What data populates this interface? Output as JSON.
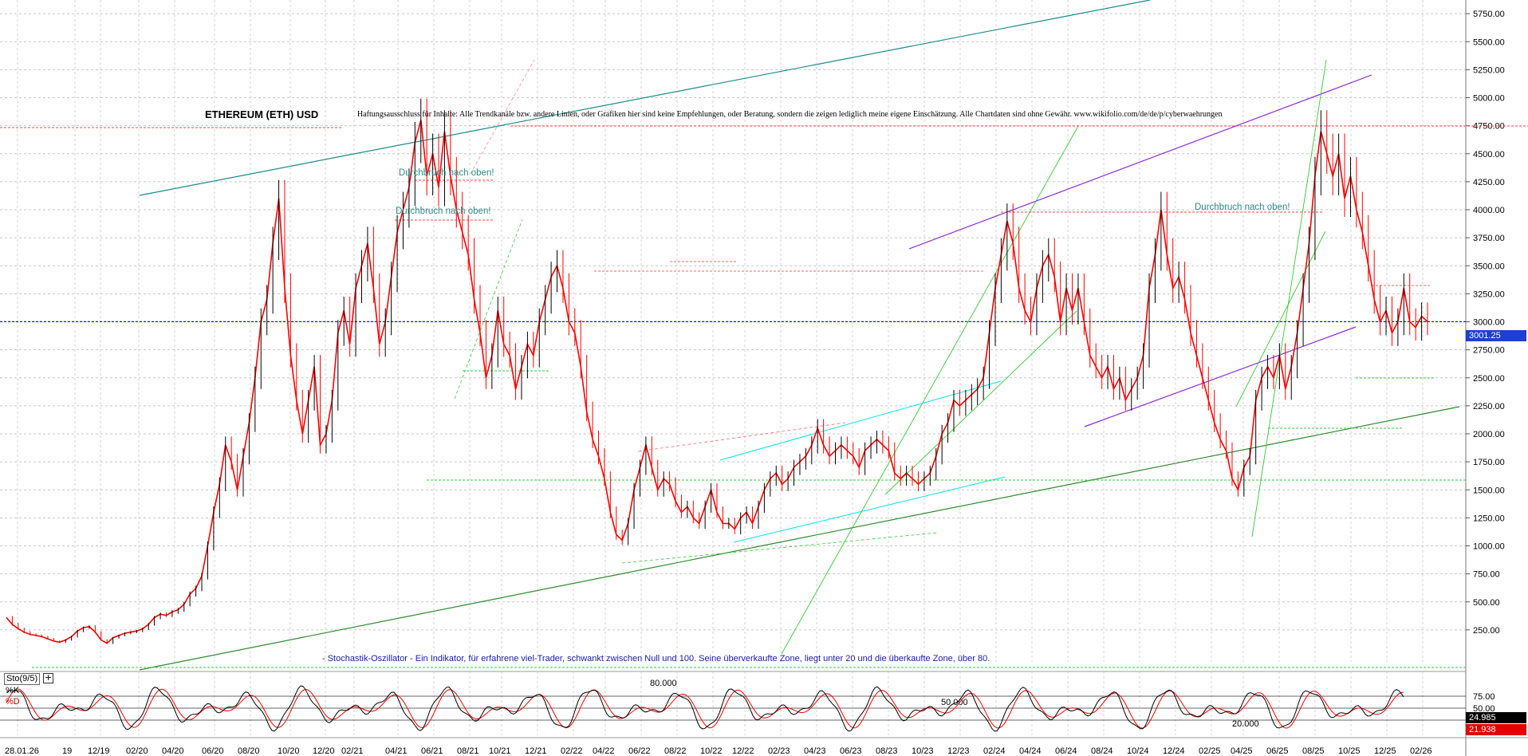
{
  "chart_data": {
    "type": "line",
    "title": "ETHEREUM (ETH) USD",
    "disclaimer": "Haftungsausschluss für Inhalte: Alle Trendkanäle bzw. andere Linien, oder Grafiken hier sind keine Empfehlungen, oder Beratung, sondern die zeigen lediglich meine eigene Einschätzung. Alle Chartdaten sind ohne Gewähr. www.wikifolio.com/de/de/p/cyberwaehrungen",
    "x_tick_labels": [
      "28.01.26",
      "19",
      "12/19",
      "02/20",
      "04/20",
      "06/20",
      "08/20",
      "10/20",
      "12/20",
      "02/21",
      "04/21",
      "06/21",
      "08/21",
      "10/21",
      "12/21",
      "02/22",
      "04/22",
      "06/22",
      "08/22",
      "10/22",
      "12/22",
      "02/23",
      "04/23",
      "06/23",
      "08/23",
      "10/23",
      "12/23",
      "02/24",
      "04/24",
      "06/24",
      "08/24",
      "10/24",
      "12/24",
      "02/25",
      "04/25",
      "06/25",
      "08/25",
      "10/25",
      "12/25",
      "02/26"
    ],
    "y_tick_labels": [
      "5750.00",
      "5500.00",
      "5250.00",
      "5000.00",
      "4750.00",
      "4500.00",
      "4250.00",
      "4000.00",
      "3750.00",
      "3500.00",
      "3250.00",
      "3000.00",
      "2750.00",
      "2500.00",
      "2250.00",
      "2000.00",
      "1750.00",
      "1500.00",
      "1250.00",
      "1000.00",
      "750.00",
      "500.00",
      "250.00"
    ],
    "ylim": [
      0,
      5900
    ],
    "grid": true,
    "current_price_label": "3001.25",
    "series": [
      {
        "values": [
          [
            0,
            360
          ],
          [
            0.5,
            300
          ],
          [
            1,
            260
          ],
          [
            1.5,
            230
          ],
          [
            2,
            210
          ],
          [
            2.5,
            200
          ],
          [
            3,
            190
          ],
          [
            3.5,
            170
          ],
          [
            4,
            150
          ],
          [
            4.5,
            140
          ],
          [
            5,
            160
          ],
          [
            5.5,
            190
          ],
          [
            6,
            240
          ],
          [
            6.5,
            270
          ],
          [
            7,
            280
          ],
          [
            7.5,
            230
          ],
          [
            8,
            160
          ],
          [
            8.5,
            130
          ],
          [
            9,
            180
          ],
          [
            9.5,
            200
          ],
          [
            10,
            220
          ],
          [
            10.5,
            230
          ],
          [
            11,
            240
          ],
          [
            11.5,
            260
          ],
          [
            12,
            300
          ],
          [
            12.5,
            360
          ],
          [
            13,
            390
          ],
          [
            13.5,
            380
          ],
          [
            14,
            410
          ],
          [
            14.5,
            430
          ],
          [
            15,
            480
          ],
          [
            15.5,
            570
          ],
          [
            16,
            620
          ],
          [
            16.5,
            730
          ],
          [
            17,
            1000
          ],
          [
            17.5,
            1300
          ],
          [
            18,
            1550
          ],
          [
            18.5,
            1900
          ],
          [
            19,
            1750
          ],
          [
            19.5,
            1500
          ],
          [
            20,
            1800
          ],
          [
            20.5,
            2100
          ],
          [
            21,
            2500
          ],
          [
            21.5,
            3000
          ],
          [
            22,
            3200
          ],
          [
            22.5,
            3700
          ],
          [
            23,
            4100
          ],
          [
            23.5,
            3300
          ],
          [
            24,
            2700
          ],
          [
            24.5,
            2300
          ],
          [
            25,
            2000
          ],
          [
            25.5,
            2300
          ],
          [
            26,
            2600
          ],
          [
            26.5,
            1900
          ],
          [
            27,
            2000
          ],
          [
            27.5,
            2300
          ],
          [
            28,
            2900
          ],
          [
            28.5,
            3100
          ],
          [
            29,
            2800
          ],
          [
            29.5,
            3300
          ],
          [
            30,
            3500
          ],
          [
            30.5,
            3700
          ],
          [
            31,
            3300
          ],
          [
            31.5,
            2800
          ],
          [
            32,
            3000
          ],
          [
            32.5,
            3400
          ],
          [
            33,
            3800
          ],
          [
            33.5,
            4000
          ],
          [
            34,
            4200
          ],
          [
            34.5,
            4600
          ],
          [
            35,
            4800
          ],
          [
            35.5,
            4300
          ],
          [
            36,
            4500
          ],
          [
            36.5,
            4200
          ],
          [
            37,
            4700
          ],
          [
            37.5,
            4300
          ],
          [
            38,
            4000
          ],
          [
            38.5,
            3800
          ],
          [
            39,
            3600
          ],
          [
            39.5,
            3200
          ],
          [
            40,
            2900
          ],
          [
            40.5,
            2500
          ],
          [
            41,
            2700
          ],
          [
            41.5,
            3100
          ],
          [
            42,
            2800
          ],
          [
            42.5,
            2700
          ],
          [
            43,
            2400
          ],
          [
            43.5,
            2600
          ],
          [
            44,
            2800
          ],
          [
            44.5,
            2700
          ],
          [
            45,
            3000
          ],
          [
            45.5,
            3200
          ],
          [
            46,
            3400
          ],
          [
            46.5,
            3500
          ],
          [
            47,
            3300
          ],
          [
            47.5,
            3000
          ],
          [
            48,
            2900
          ],
          [
            48.5,
            2600
          ],
          [
            49,
            2200
          ],
          [
            49.5,
            1950
          ],
          [
            50,
            1800
          ],
          [
            50.5,
            1600
          ],
          [
            51,
            1300
          ],
          [
            51.5,
            1100
          ],
          [
            52,
            1050
          ],
          [
            52.5,
            1200
          ],
          [
            53,
            1500
          ],
          [
            53.5,
            1700
          ],
          [
            54,
            1900
          ],
          [
            54.5,
            1700
          ],
          [
            55,
            1500
          ],
          [
            55.5,
            1600
          ],
          [
            56,
            1550
          ],
          [
            56.5,
            1400
          ],
          [
            57,
            1300
          ],
          [
            57.5,
            1350
          ],
          [
            58,
            1250
          ],
          [
            58.5,
            1200
          ],
          [
            59,
            1350
          ],
          [
            59.5,
            1500
          ],
          [
            60,
            1300
          ],
          [
            60.5,
            1200
          ],
          [
            61,
            1200
          ],
          [
            61.5,
            1150
          ],
          [
            62,
            1250
          ],
          [
            62.5,
            1300
          ],
          [
            63,
            1200
          ],
          [
            63.5,
            1350
          ],
          [
            64,
            1500
          ],
          [
            64.5,
            1600
          ],
          [
            65,
            1650
          ],
          [
            65.5,
            1550
          ],
          [
            66,
            1600
          ],
          [
            66.5,
            1700
          ],
          [
            67,
            1750
          ],
          [
            67.5,
            1800
          ],
          [
            68,
            1900
          ],
          [
            68.5,
            2050
          ],
          [
            69,
            1900
          ],
          [
            69.5,
            1800
          ],
          [
            70,
            1850
          ],
          [
            70.5,
            1900
          ],
          [
            71,
            1850
          ],
          [
            71.5,
            1800
          ],
          [
            72,
            1700
          ],
          [
            72.5,
            1850
          ],
          [
            73,
            1900
          ],
          [
            73.5,
            1950
          ],
          [
            74,
            1900
          ],
          [
            74.5,
            1850
          ],
          [
            75,
            1650
          ],
          [
            75.5,
            1600
          ],
          [
            76,
            1650
          ],
          [
            76.5,
            1600
          ],
          [
            77,
            1550
          ],
          [
            77.5,
            1600
          ],
          [
            78,
            1650
          ],
          [
            78.5,
            1800
          ],
          [
            79,
            2000
          ],
          [
            79.5,
            2100
          ],
          [
            80,
            2300
          ],
          [
            80.5,
            2250
          ],
          [
            81,
            2300
          ],
          [
            81.5,
            2350
          ],
          [
            82,
            2400
          ],
          [
            82.5,
            2500
          ],
          [
            83,
            2900
          ],
          [
            83.5,
            3300
          ],
          [
            84,
            3600
          ],
          [
            84.5,
            3900
          ],
          [
            85,
            3700
          ],
          [
            85.5,
            3300
          ],
          [
            86,
            3100
          ],
          [
            86.5,
            3000
          ],
          [
            87,
            3300
          ],
          [
            87.5,
            3500
          ],
          [
            88,
            3600
          ],
          [
            88.5,
            3400
          ],
          [
            89,
            3000
          ],
          [
            89.5,
            3300
          ],
          [
            90,
            3100
          ],
          [
            90.5,
            3300
          ],
          [
            91,
            3000
          ],
          [
            91.5,
            2700
          ],
          [
            92,
            2600
          ],
          [
            92.5,
            2500
          ],
          [
            93,
            2600
          ],
          [
            93.5,
            2400
          ],
          [
            94,
            2500
          ],
          [
            94.5,
            2300
          ],
          [
            95,
            2400
          ],
          [
            95.5,
            2500
          ],
          [
            96,
            2700
          ],
          [
            96.5,
            3300
          ],
          [
            97,
            3600
          ],
          [
            97.5,
            4000
          ],
          [
            98,
            3600
          ],
          [
            98.5,
            3300
          ],
          [
            99,
            3400
          ],
          [
            99.5,
            3200
          ],
          [
            100,
            2900
          ],
          [
            100.5,
            2700
          ],
          [
            101,
            2500
          ],
          [
            101.5,
            2300
          ],
          [
            102,
            2100
          ],
          [
            102.5,
            1950
          ],
          [
            103,
            1850
          ],
          [
            103.5,
            1600
          ],
          [
            104,
            1500
          ],
          [
            104.5,
            1700
          ],
          [
            105,
            1800
          ],
          [
            105.5,
            2300
          ],
          [
            106,
            2500
          ],
          [
            106.5,
            2600
          ],
          [
            107,
            2500
          ],
          [
            107.5,
            2700
          ],
          [
            108,
            2400
          ],
          [
            108.5,
            2600
          ],
          [
            109,
            2900
          ],
          [
            109.5,
            3300
          ],
          [
            110,
            3700
          ],
          [
            110.5,
            4300
          ],
          [
            111,
            4700
          ],
          [
            111.5,
            4500
          ],
          [
            112,
            4300
          ],
          [
            112.5,
            4500
          ],
          [
            113,
            4100
          ],
          [
            113.5,
            4300
          ],
          [
            114,
            4000
          ],
          [
            114.5,
            3800
          ],
          [
            115,
            3500
          ],
          [
            115.5,
            3200
          ],
          [
            116,
            3000
          ],
          [
            116.5,
            3100
          ],
          [
            117,
            2900
          ],
          [
            117.5,
            3000
          ],
          [
            118,
            3300
          ],
          [
            118.5,
            3000
          ],
          [
            119,
            2950
          ],
          [
            119.5,
            3050
          ],
          [
            120,
            3001
          ]
        ]
      }
    ],
    "annotations": [
      "Durchbruch nach oben!",
      "Durchbruch nach oben!",
      "Durchbruch nach oben!"
    ],
    "stochastic": {
      "label": "Sto(9/5)",
      "k_label": "%K",
      "d_label": "%D",
      "y_tick_labels": [
        "75.00",
        "50.00"
      ],
      "level_labels": [
        "80.000",
        "50.000",
        "20.000"
      ],
      "k_value": "24.985",
      "d_value": "21.938",
      "note": "- Stochastik-Oszillator - Ein Indikator, für erfahrene viel-Trader, schwankt zwischen Null und 100. Seine überverkaufte Zone, liegt unter 20 und die überkaufte Zone, über 80."
    },
    "colors": {
      "price_up": "#000000",
      "price_down": "#ff0000",
      "current_price": "#0000ff",
      "k_line": "#000000",
      "d_line": "#ff0000",
      "trend_teal": "#1a8c8c",
      "trend_purple": "#8a2be2",
      "trend_green": "#2e8b2e",
      "trend_lime": "#33cc33",
      "trend_cyan": "#00e5ee",
      "annotation": "#2e8b8b"
    }
  }
}
